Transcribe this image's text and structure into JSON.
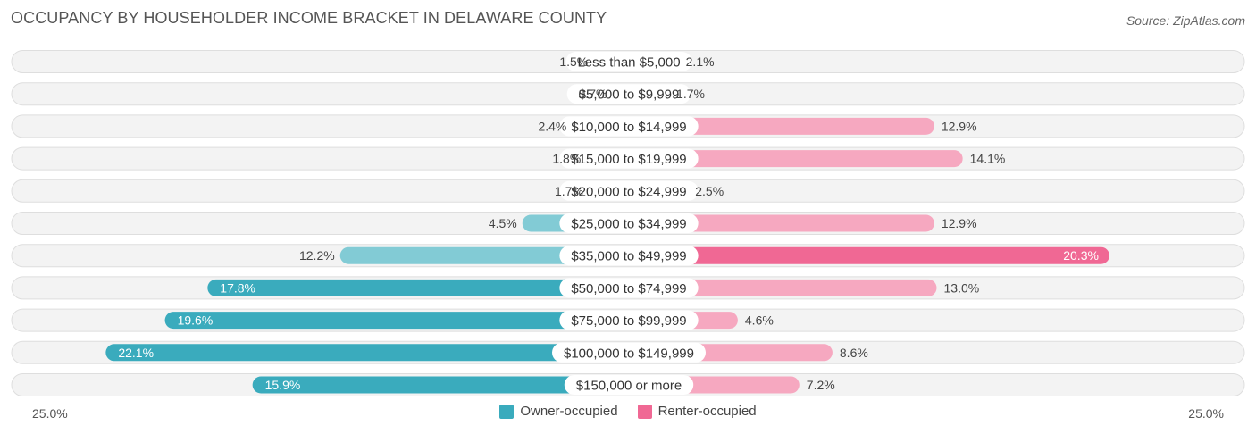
{
  "chart_data": {
    "type": "bar",
    "orientation": "horizontal-diverging",
    "title": "OCCUPANCY BY HOUSEHOLDER INCOME BRACKET IN DELAWARE COUNTY",
    "source": "Source: ZipAtlas.com",
    "categories": [
      "Less than $5,000",
      "$5,000 to $9,999",
      "$10,000 to $14,999",
      "$15,000 to $19,999",
      "$20,000 to $24,999",
      "$25,000 to $34,999",
      "$35,000 to $49,999",
      "$50,000 to $74,999",
      "$75,000 to $99,999",
      "$100,000 to $149,999",
      "$150,000 or more"
    ],
    "series": [
      {
        "name": "Owner-occupied",
        "color": "#3aabbd",
        "color_light": "#82cbd5",
        "values": [
          1.5,
          0.7,
          2.4,
          1.8,
          1.7,
          4.5,
          12.2,
          17.8,
          19.6,
          22.1,
          15.9
        ],
        "labels": [
          "1.5%",
          "0.7%",
          "2.4%",
          "1.8%",
          "1.7%",
          "4.5%",
          "12.2%",
          "17.8%",
          "19.6%",
          "22.1%",
          "15.9%"
        ]
      },
      {
        "name": "Renter-occupied",
        "color": "#f06894",
        "color_light": "#f6a8c0",
        "values": [
          2.1,
          1.7,
          12.9,
          14.1,
          2.5,
          12.9,
          20.3,
          13.0,
          4.6,
          8.6,
          7.2
        ],
        "labels": [
          "2.1%",
          "1.7%",
          "12.9%",
          "14.1%",
          "2.5%",
          "12.9%",
          "20.3%",
          "13.0%",
          "4.6%",
          "8.6%",
          "7.2%"
        ]
      }
    ],
    "axis": {
      "max": 25.0,
      "left_label": "25.0%",
      "right_label": "25.0%"
    },
    "legend_position": "bottom-center"
  }
}
